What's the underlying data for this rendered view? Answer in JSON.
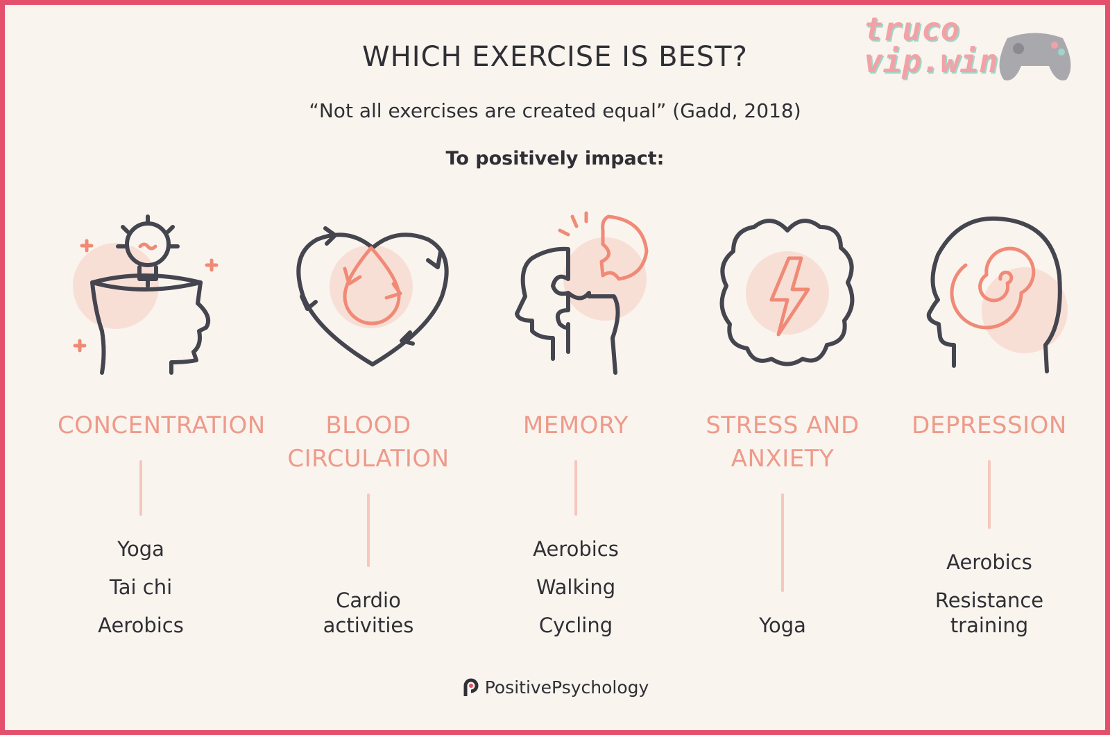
{
  "header": {
    "title": "WHICH EXERCISE IS BEST?",
    "subtitle": "“Not all exercises are created equal” (Gadd, 2018)",
    "lead": "To positively impact:"
  },
  "columns": [
    {
      "heading": "CONCENTRATION",
      "items": [
        "Yoga",
        "Tai chi",
        "Aerobics"
      ]
    },
    {
      "heading": "BLOOD CIRCULATION",
      "items": [
        "Cardio activities"
      ]
    },
    {
      "heading": "MEMORY",
      "items": [
        "Aerobics",
        "Walking",
        "Cycling"
      ]
    },
    {
      "heading": "STRESS AND ANXIETY",
      "items": [
        "Yoga"
      ]
    },
    {
      "heading": "DEPRESSION",
      "items": [
        "Aerobics",
        "Resistance training"
      ]
    }
  ],
  "footer": {
    "brand": "PositivePsychology"
  },
  "watermark": {
    "line1": "truco",
    "line2": "vip.win"
  }
}
